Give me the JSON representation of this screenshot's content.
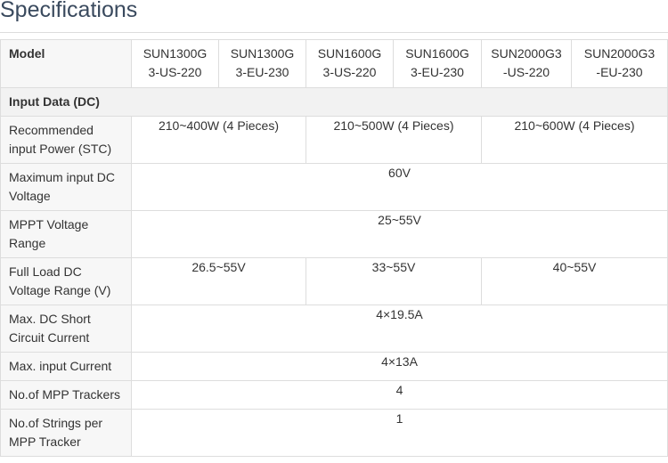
{
  "title": "Specifications",
  "table": {
    "header": {
      "label": "Model",
      "models": [
        [
          "SUN1300G",
          "3-US-220"
        ],
        [
          "SUN1300G",
          "3-EU-230"
        ],
        [
          "SUN1600G",
          "3-US-220"
        ],
        [
          "SUN1600G",
          "3-EU-230"
        ],
        [
          "SUN2000G3",
          "-US-220"
        ],
        [
          "SUN2000G3",
          "-EU-230"
        ]
      ]
    },
    "section": "Input Data (DC)",
    "rows": {
      "rec_power": {
        "label": [
          "Recommended",
          "input Power (STC)"
        ],
        "values": [
          "210~400W (4 Pieces)",
          "210~500W (4 Pieces)",
          "210~600W (4 Pieces)"
        ]
      },
      "max_input_voltage": {
        "label": [
          "Maximum input DC",
          "Voltage"
        ],
        "value": "60V"
      },
      "mppt_range": {
        "label": [
          "MPPT Voltage",
          "Range"
        ],
        "value": "25~55V"
      },
      "full_load": {
        "label": [
          "Full Load DC",
          "Voltage Range (V)"
        ],
        "values": [
          "26.5~55V",
          "33~55V",
          "40~55V"
        ]
      },
      "short_circuit": {
        "label": [
          "Max. DC Short",
          "Circuit Current"
        ],
        "value": "4×19.5A"
      },
      "max_input_current": {
        "label": "Max. input Current",
        "value": "4×13A"
      },
      "mpp_trackers": {
        "label": "No.of MPP Trackers",
        "value": "4"
      },
      "strings": {
        "label": [
          "No.of Strings per",
          "MPP Tracker"
        ],
        "value": "1"
      }
    }
  }
}
